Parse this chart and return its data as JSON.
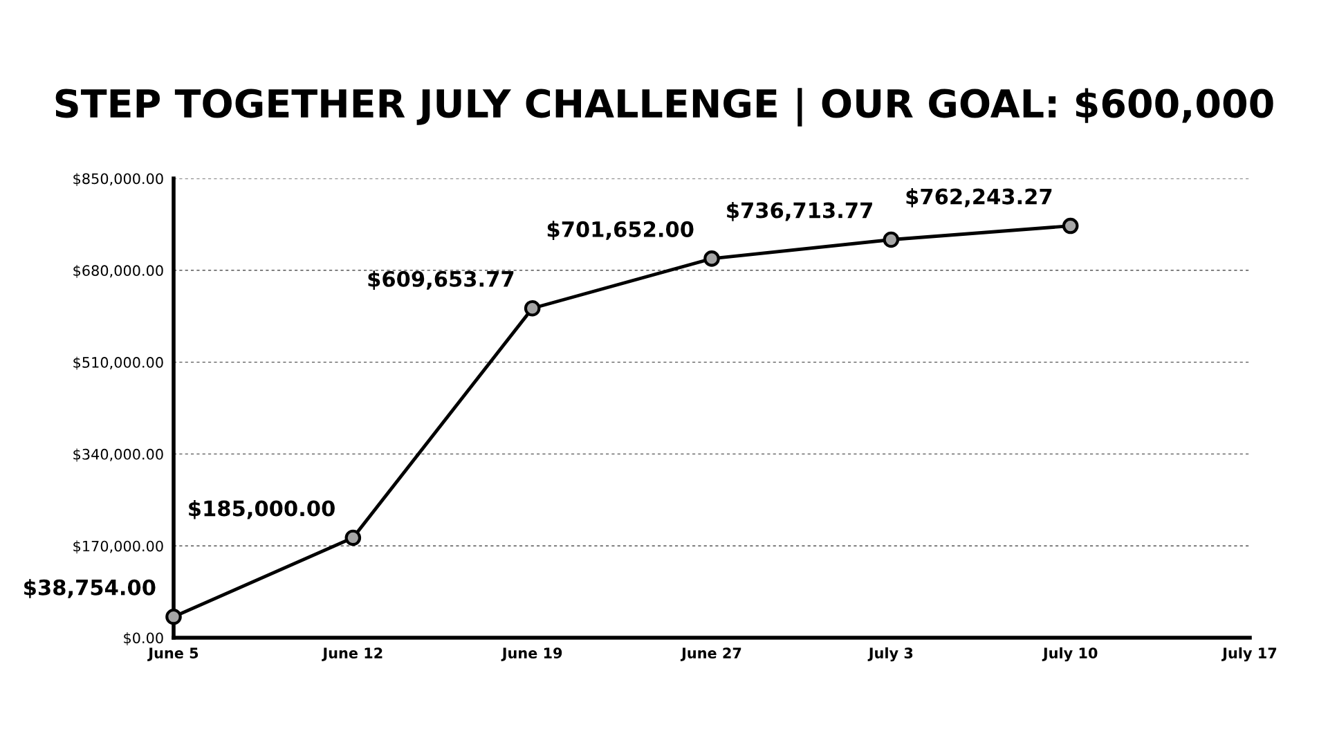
{
  "chart_data": {
    "type": "line",
    "title": "STEP TOGETHER JULY CHALLENGE | OUR GOAL: $600,000",
    "categories": [
      "June 5",
      "June 12",
      "June 19",
      "June 27",
      "July 3",
      "July 10",
      "July 17"
    ],
    "series": [
      {
        "color": "#000000",
        "values": [
          38754.0,
          185000.0,
          609653.77,
          701652.0,
          736713.77,
          762243.27,
          null
        ],
        "value_labels": [
          "$38,754.00",
          "$185,000.00",
          "$609,653.77",
          "$701,652.00",
          "$736,713.77",
          "$762,243.27",
          null
        ]
      }
    ],
    "ylim": [
      0,
      850000
    ],
    "yticks": [
      {
        "value": 0,
        "label": "$0.00"
      },
      {
        "value": 170000,
        "label": "$170,000.00"
      },
      {
        "value": 340000,
        "label": "$340,000.00"
      },
      {
        "value": 510000,
        "label": "$510,000.00"
      },
      {
        "value": 680000,
        "label": "$680,000.00"
      },
      {
        "value": 850000,
        "label": "$850,000.00"
      }
    ],
    "grid": "y",
    "marker": "circle",
    "line_style": "solid"
  }
}
